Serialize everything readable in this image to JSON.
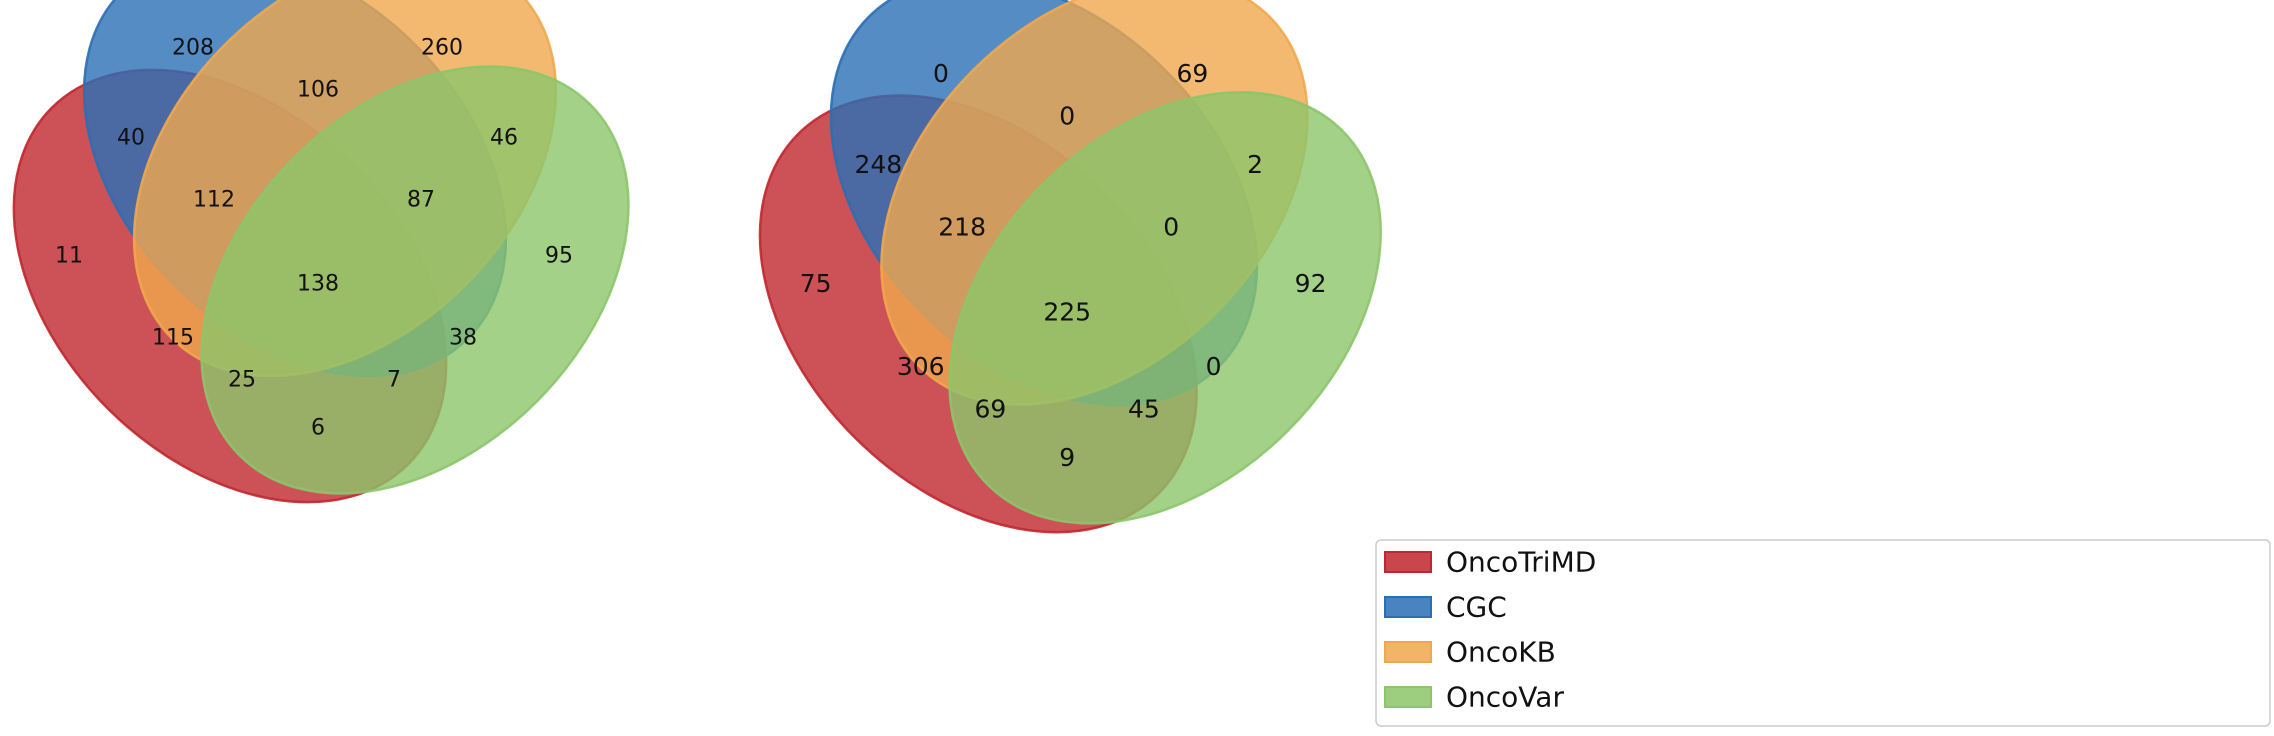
{
  "chart_data": [
    {
      "type": "venn4",
      "sets": [
        "OncoTriMD",
        "CGC",
        "OncoKB",
        "OncoVar"
      ],
      "regions": [
        {
          "sets": [
            "CGC"
          ],
          "value": 208
        },
        {
          "sets": [
            "OncoKB"
          ],
          "value": 260
        },
        {
          "sets": [
            "CGC",
            "OncoKB"
          ],
          "value": 106
        },
        {
          "sets": [
            "OncoTriMD",
            "CGC"
          ],
          "value": 40
        },
        {
          "sets": [
            "OncoKB",
            "OncoVar"
          ],
          "value": 46
        },
        {
          "sets": [
            "OncoTriMD",
            "CGC",
            "OncoKB"
          ],
          "value": 112
        },
        {
          "sets": [
            "CGC",
            "OncoKB",
            "OncoVar"
          ],
          "value": 87
        },
        {
          "sets": [
            "OncoTriMD"
          ],
          "value": 11
        },
        {
          "sets": [
            "OncoVar"
          ],
          "value": 95
        },
        {
          "sets": [
            "OncoTriMD",
            "CGC",
            "OncoKB",
            "OncoVar"
          ],
          "value": 138
        },
        {
          "sets": [
            "OncoTriMD",
            "OncoKB"
          ],
          "value": 115
        },
        {
          "sets": [
            "CGC",
            "OncoVar"
          ],
          "value": 38
        },
        {
          "sets": [
            "OncoTriMD",
            "OncoKB",
            "OncoVar"
          ],
          "value": 25
        },
        {
          "sets": [
            "OncoTriMD",
            "CGC",
            "OncoVar"
          ],
          "value": 7
        },
        {
          "sets": [
            "OncoTriMD",
            "OncoVar"
          ],
          "value": 6
        }
      ]
    },
    {
      "type": "venn4",
      "sets": [
        "OncoTriMD",
        "CGC",
        "OncoKB",
        "OncoVar"
      ],
      "regions": [
        {
          "sets": [
            "CGC"
          ],
          "value": 0
        },
        {
          "sets": [
            "OncoKB"
          ],
          "value": 69
        },
        {
          "sets": [
            "CGC",
            "OncoKB"
          ],
          "value": 0
        },
        {
          "sets": [
            "OncoTriMD",
            "CGC"
          ],
          "value": 248
        },
        {
          "sets": [
            "OncoKB",
            "OncoVar"
          ],
          "value": 2
        },
        {
          "sets": [
            "OncoTriMD",
            "CGC",
            "OncoKB"
          ],
          "value": 218
        },
        {
          "sets": [
            "CGC",
            "OncoKB",
            "OncoVar"
          ],
          "value": 0
        },
        {
          "sets": [
            "OncoTriMD"
          ],
          "value": 75
        },
        {
          "sets": [
            "OncoVar"
          ],
          "value": 92
        },
        {
          "sets": [
            "OncoTriMD",
            "CGC",
            "OncoKB",
            "OncoVar"
          ],
          "value": 225
        },
        {
          "sets": [
            "OncoTriMD",
            "OncoKB"
          ],
          "value": 306
        },
        {
          "sets": [
            "CGC",
            "OncoVar"
          ],
          "value": 0
        },
        {
          "sets": [
            "OncoTriMD",
            "OncoKB",
            "OncoVar"
          ],
          "value": 69
        },
        {
          "sets": [
            "OncoTriMD",
            "CGC",
            "OncoVar"
          ],
          "value": 45
        },
        {
          "sets": [
            "OncoTriMD",
            "OncoVar"
          ],
          "value": 9
        }
      ]
    }
  ],
  "colors": {
    "OncoTriMD": "#c0272d",
    "CGC": "#2a6fb5",
    "OncoKB": "#f0a84e",
    "OncoVar": "#8cc56a"
  },
  "legend": {
    "placement": "bottom-right",
    "items": [
      {
        "label": "OncoTriMD",
        "color": "#c0272d"
      },
      {
        "label": "CGC",
        "color": "#2a6fb5"
      },
      {
        "label": "OncoKB",
        "color": "#f0a84e"
      },
      {
        "label": "OncoVar",
        "color": "#8cc56a"
      }
    ]
  }
}
